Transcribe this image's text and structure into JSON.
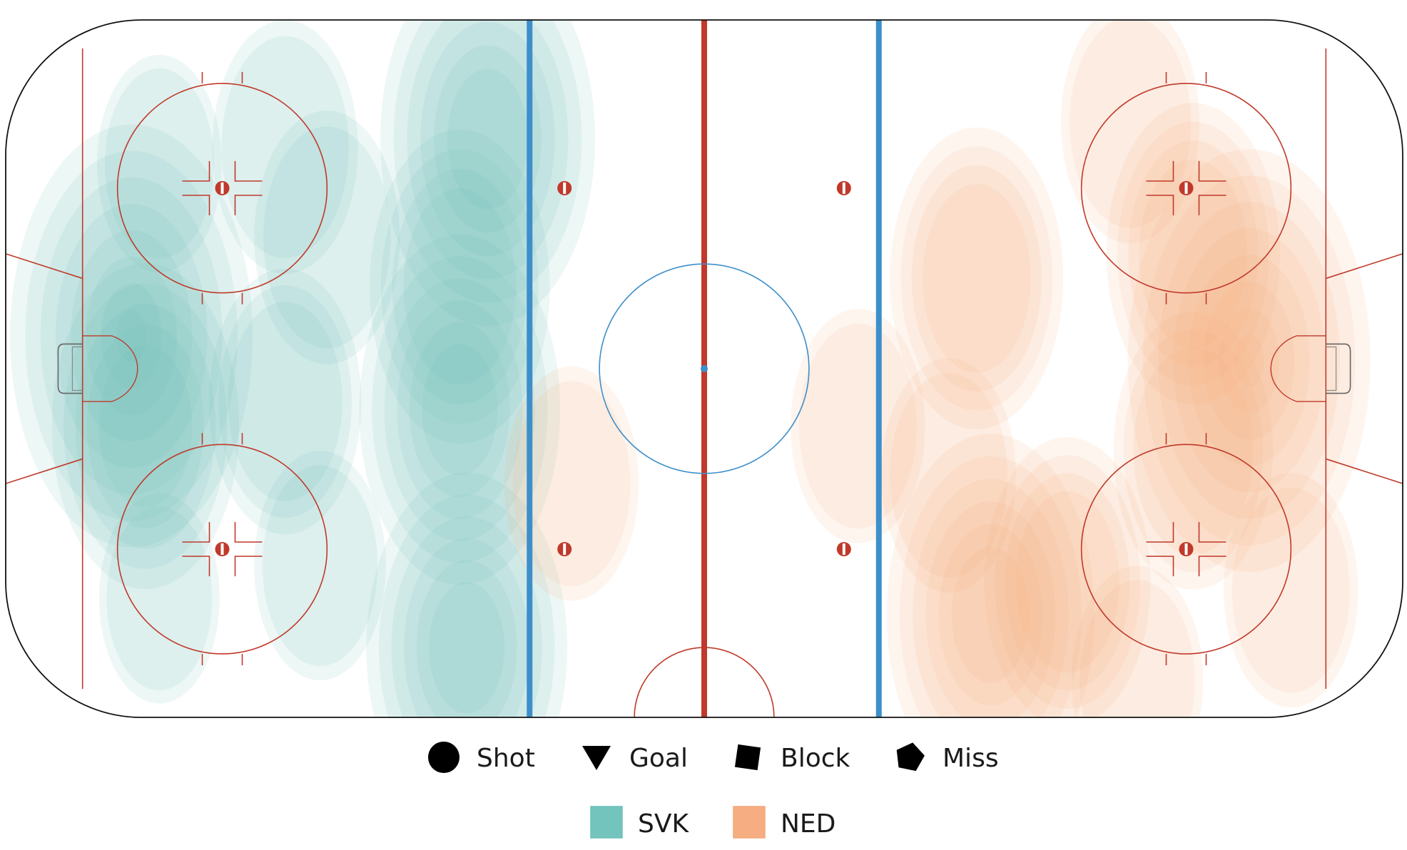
{
  "chart_data": {
    "type": "heatmap",
    "title": "",
    "xlabel": "",
    "ylabel": "",
    "xlim": [
      -100,
      100
    ],
    "ylim": [
      -42.5,
      42.5
    ],
    "legend_placement": "bottom",
    "shape_legend": [
      {
        "label": "Shot",
        "marker": "circle"
      },
      {
        "label": "Goal",
        "marker": "triangle-down"
      },
      {
        "label": "Block",
        "marker": "square"
      },
      {
        "label": "Miss",
        "marker": "pentagon"
      }
    ],
    "series": [
      {
        "name": "SVK",
        "color": "#6cc1b9",
        "hotspots": [
          {
            "x": -82,
            "y": 4,
            "weight": 1.0
          },
          {
            "x": -80,
            "y": -7,
            "weight": 0.6
          },
          {
            "x": -31,
            "y": 28,
            "weight": 0.8
          },
          {
            "x": -35,
            "y": 10,
            "weight": 0.55
          },
          {
            "x": -35,
            "y": -5,
            "weight": 0.7
          },
          {
            "x": -34,
            "y": -34,
            "weight": 0.7
          },
          {
            "x": -60,
            "y": 27,
            "weight": 0.3
          },
          {
            "x": -60,
            "y": -4,
            "weight": 0.35
          },
          {
            "x": -54,
            "y": 16,
            "weight": 0.3
          },
          {
            "x": -55,
            "y": -24,
            "weight": 0.2
          },
          {
            "x": -78,
            "y": 25,
            "weight": 0.15
          },
          {
            "x": -78,
            "y": -28,
            "weight": 0.12
          }
        ]
      },
      {
        "name": "NED",
        "color": "#f4a97a",
        "hotspots": [
          {
            "x": 78,
            "y": 1,
            "weight": 1.0
          },
          {
            "x": 70,
            "y": 14,
            "weight": 0.5
          },
          {
            "x": 70,
            "y": -10,
            "weight": 0.4
          },
          {
            "x": 41,
            "y": -30,
            "weight": 0.75
          },
          {
            "x": 52,
            "y": -26,
            "weight": 0.45
          },
          {
            "x": 39,
            "y": 11,
            "weight": 0.5
          },
          {
            "x": 61,
            "y": 30,
            "weight": 0.25
          },
          {
            "x": 22,
            "y": -7,
            "weight": 0.22
          },
          {
            "x": 35,
            "y": -13,
            "weight": 0.22
          },
          {
            "x": 84,
            "y": -27,
            "weight": 0.22
          },
          {
            "x": 62,
            "y": -38,
            "weight": 0.2
          },
          {
            "x": -19,
            "y": -14,
            "weight": 0.22
          }
        ]
      }
    ]
  }
}
